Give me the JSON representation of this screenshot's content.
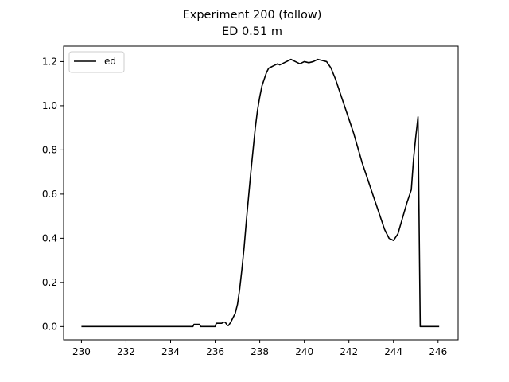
{
  "chart_data": {
    "type": "line",
    "title": "Experiment 200 (follow)",
    "subtitle": "ED 0.51 m",
    "xlabel": "",
    "ylabel": "",
    "xlim": [
      229.2,
      246.9
    ],
    "ylim": [
      -0.06,
      1.27
    ],
    "xticks": [
      230,
      232,
      234,
      236,
      238,
      240,
      242,
      244,
      246
    ],
    "yticks": [
      0.0,
      0.2,
      0.4,
      0.6,
      0.8,
      1.0,
      1.2
    ],
    "ytick_labels": [
      "0.0",
      "0.2",
      "0.4",
      "0.6",
      "0.8",
      "1.0",
      "1.2"
    ],
    "grid": false,
    "legend": {
      "position": "top-left"
    },
    "series": [
      {
        "name": "ed",
        "color": "#000000",
        "x": [
          230.0,
          235.0,
          235.05,
          235.3,
          235.35,
          236.0,
          236.05,
          236.3,
          236.35,
          236.45,
          236.55,
          236.6,
          236.7,
          236.8,
          236.9,
          237.0,
          237.1,
          237.2,
          237.3,
          237.4,
          237.5,
          237.6,
          237.7,
          237.8,
          237.9,
          238.0,
          238.1,
          238.2,
          238.3,
          238.4,
          238.5,
          238.6,
          238.7,
          238.8,
          238.9,
          239.0,
          239.2,
          239.4,
          239.6,
          239.8,
          240.0,
          240.2,
          240.4,
          240.6,
          240.8,
          241.0,
          241.2,
          241.4,
          241.6,
          241.8,
          242.0,
          242.2,
          242.4,
          242.6,
          242.8,
          243.0,
          243.2,
          243.4,
          243.6,
          243.8,
          244.0,
          244.2,
          244.4,
          244.6,
          244.8,
          244.9,
          245.0,
          245.1,
          245.2,
          245.4,
          245.6,
          245.8,
          246.0,
          246.05
        ],
        "y": [
          0.0,
          0.0,
          0.01,
          0.01,
          0.0,
          0.0,
          0.015,
          0.015,
          0.02,
          0.02,
          0.005,
          0.005,
          0.02,
          0.04,
          0.06,
          0.1,
          0.17,
          0.26,
          0.36,
          0.48,
          0.59,
          0.7,
          0.8,
          0.9,
          0.98,
          1.04,
          1.09,
          1.12,
          1.15,
          1.17,
          1.175,
          1.18,
          1.185,
          1.19,
          1.185,
          1.19,
          1.2,
          1.21,
          1.2,
          1.19,
          1.2,
          1.195,
          1.2,
          1.21,
          1.205,
          1.2,
          1.17,
          1.12,
          1.06,
          1.0,
          0.94,
          0.88,
          0.81,
          0.74,
          0.68,
          0.62,
          0.56,
          0.5,
          0.44,
          0.4,
          0.39,
          0.42,
          0.49,
          0.56,
          0.62,
          0.76,
          0.86,
          0.95,
          0.0,
          0.0,
          0.0,
          0.0,
          0.0,
          0.0
        ]
      }
    ]
  }
}
